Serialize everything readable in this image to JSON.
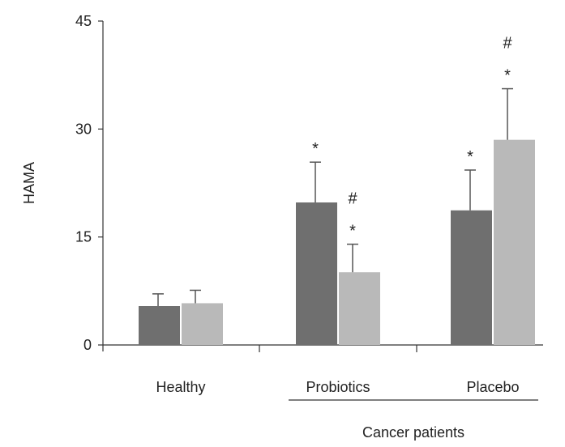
{
  "chart_data": {
    "type": "bar",
    "ylabel": "HAMA",
    "xlabel": "",
    "ylim": [
      0,
      45
    ],
    "yticks": [
      "0",
      "15",
      "30",
      "45"
    ],
    "categories": [
      "Healthy",
      "Probiotics",
      "Placebo"
    ],
    "group_label": "Cancer patients",
    "series": [
      {
        "color": "#6f6f6f",
        "values": [
          5.4,
          19.8,
          18.7
        ],
        "error": [
          1.7,
          5.6,
          5.6
        ],
        "annotations": [
          "",
          "*",
          "*"
        ]
      },
      {
        "color": "#b9b9b9",
        "values": [
          5.8,
          10.1,
          28.5
        ],
        "error": [
          1.8,
          3.9,
          7.1
        ],
        "annotations": [
          "",
          "* #",
          "* #"
        ]
      }
    ],
    "grid": false,
    "legend": "none"
  }
}
